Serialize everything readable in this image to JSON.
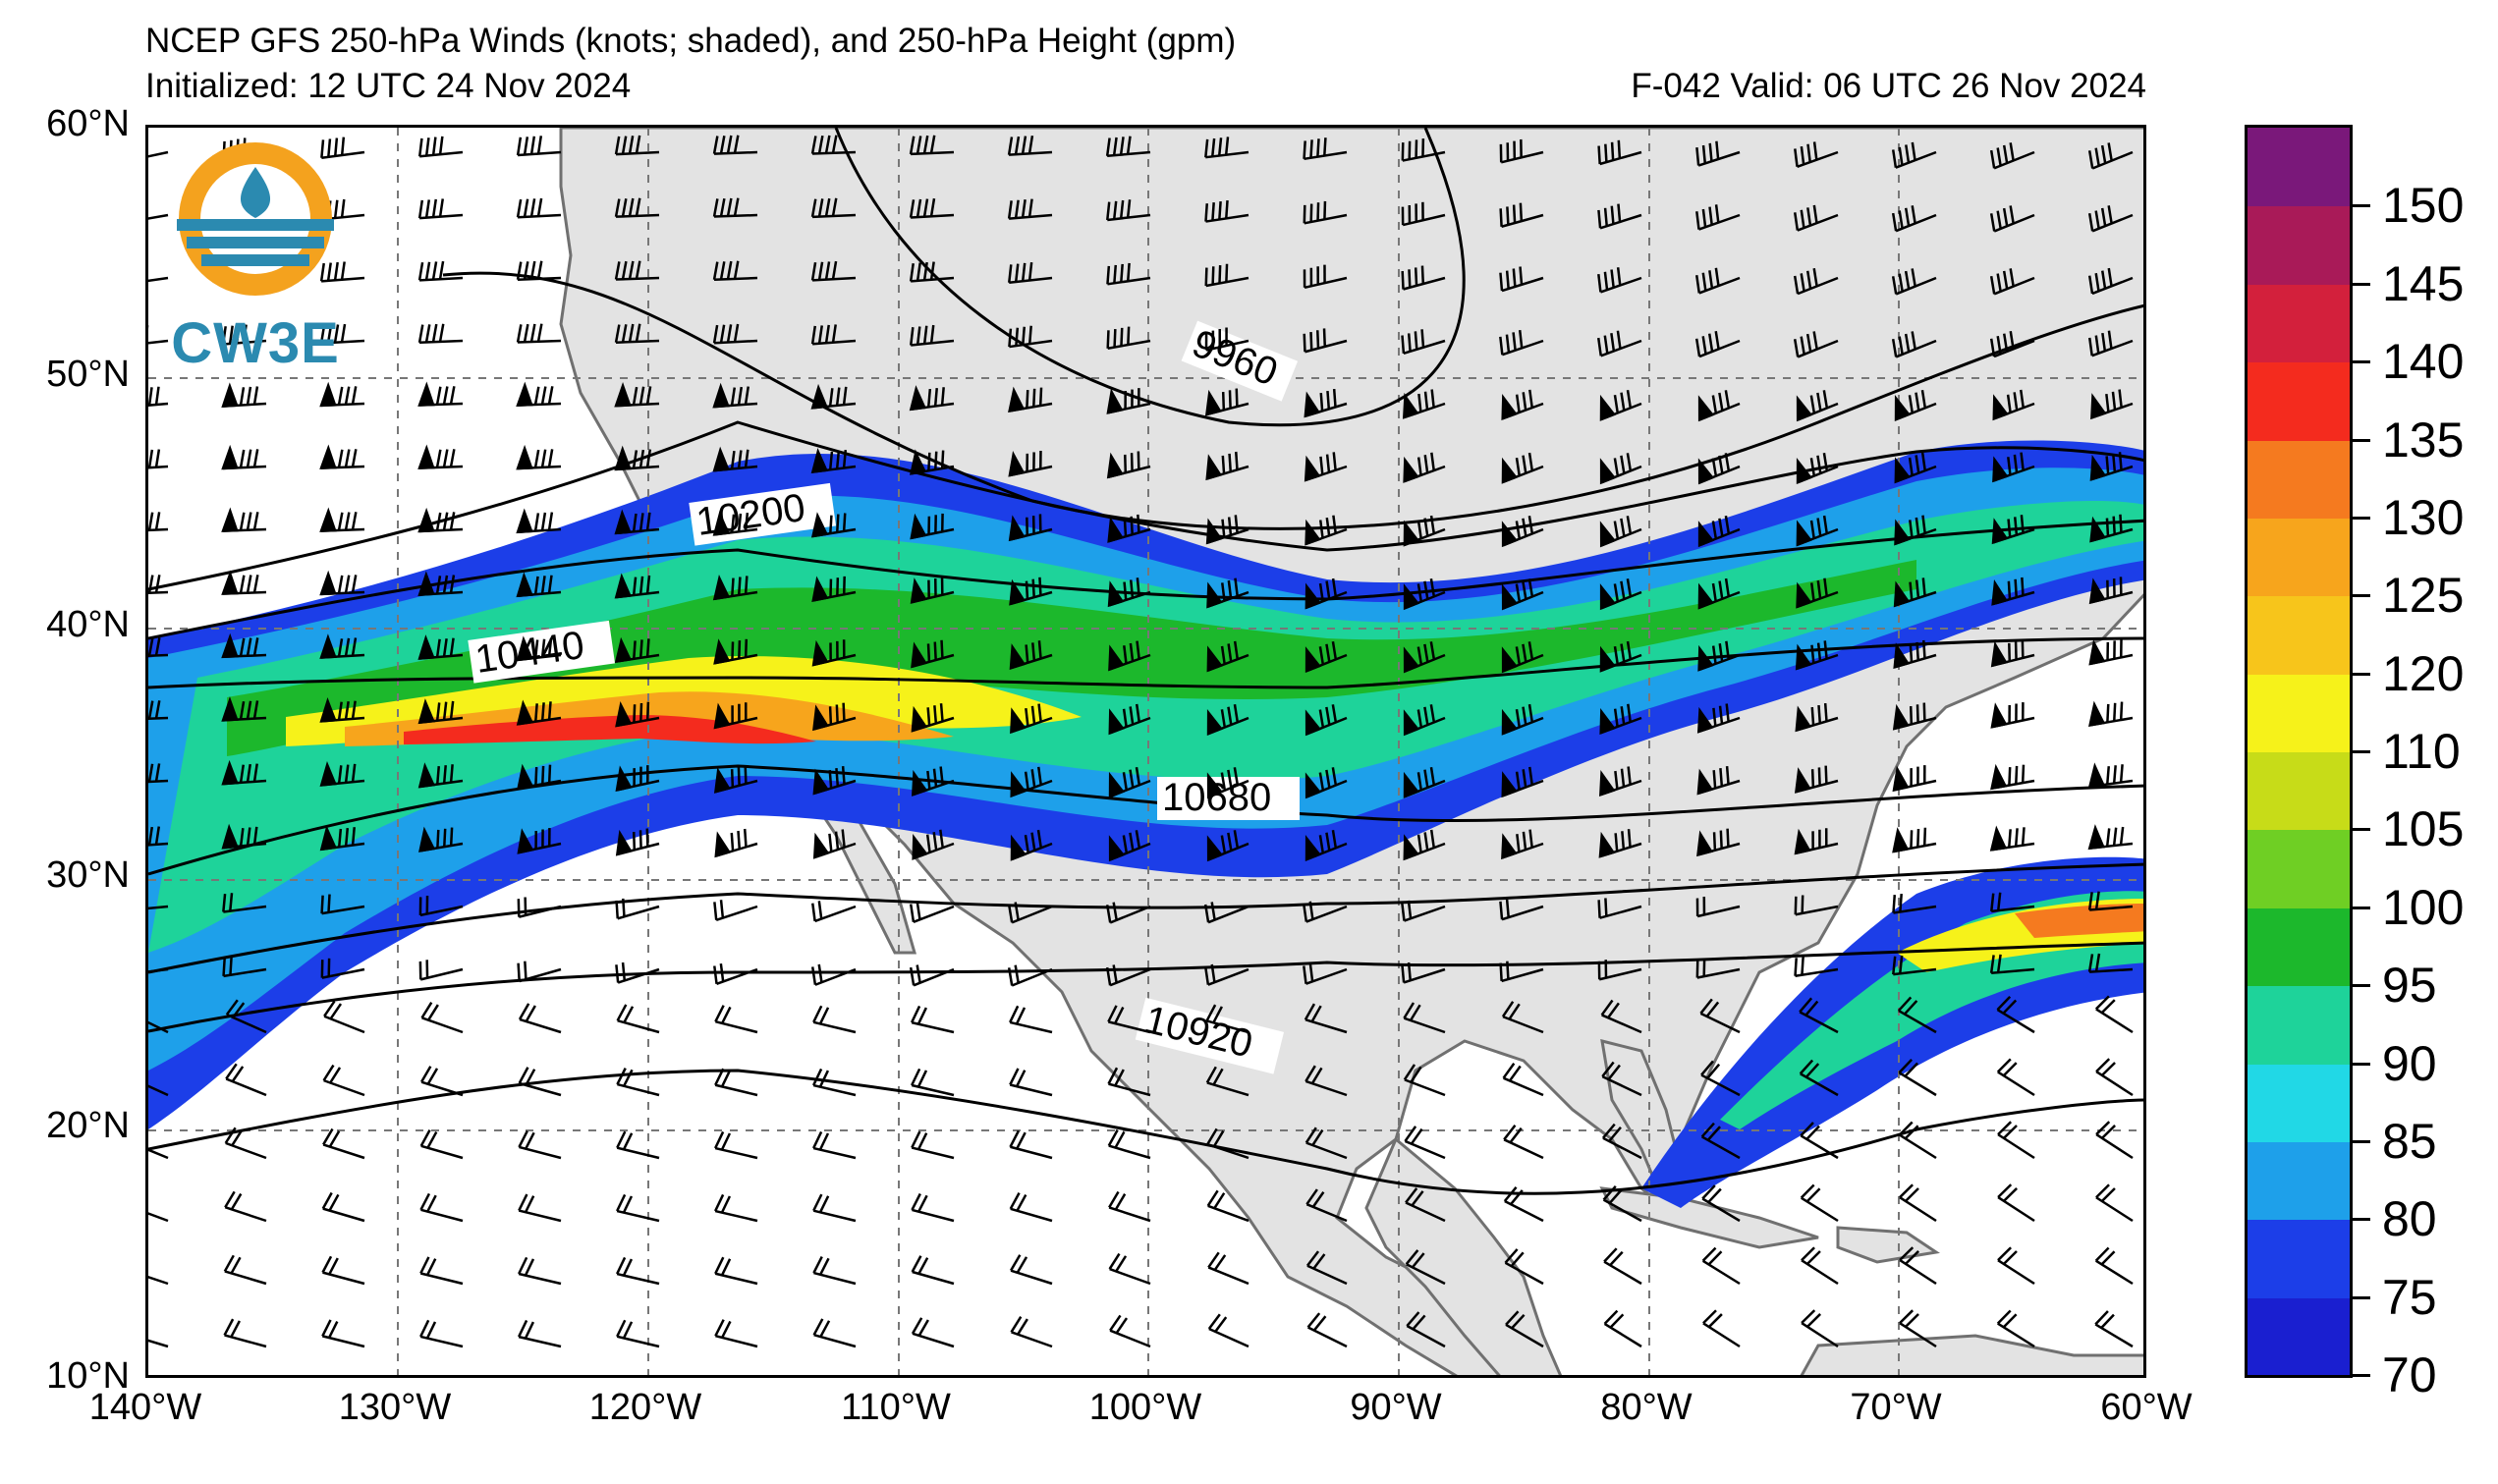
{
  "title": {
    "line1": "NCEP GFS 250-hPa Winds (knots; shaded), and 250-hPa Height (gpm)",
    "initialized": "Initialized: 12 UTC 24 Nov 2024",
    "valid": "F-042  Valid: 06 UTC 26 Nov 2024"
  },
  "logo": {
    "text": "CW3E",
    "icon": "water-drop-sun-icon"
  },
  "axes": {
    "lat_labels": [
      "60°N",
      "50°N",
      "40°N",
      "30°N",
      "20°N",
      "10°N"
    ],
    "lon_labels": [
      "140°W",
      "130°W",
      "120°W",
      "110°W",
      "100°W",
      "90°W",
      "80°W",
      "70°W",
      "60°W"
    ],
    "lat_range": [
      10,
      60
    ],
    "lon_range": [
      -140,
      -60
    ],
    "gridlines": "dashed"
  },
  "contours": {
    "labels": [
      "9960",
      "10200",
      "10440",
      "10680",
      "10920"
    ]
  },
  "colorbar": {
    "levels": [
      "70",
      "75",
      "80",
      "85",
      "90",
      "95",
      "100",
      "105",
      "110",
      "120",
      "125",
      "130",
      "135",
      "140",
      "145",
      "150"
    ],
    "tick_labels": [
      "70",
      "75",
      "80",
      "85",
      "90",
      "95",
      "100",
      "105",
      "110",
      "120",
      "125",
      "130",
      "135",
      "140",
      "145",
      "150"
    ],
    "colors": [
      "#1a1fd0",
      "#1c3ee8",
      "#1ea0ea",
      "#21d8e6",
      "#1ed39a",
      "#1cb82c",
      "#6fcf24",
      "#c7dc18",
      "#f6f21a",
      "#f7c51b",
      "#f7a51c",
      "#f57a1f",
      "#f42b1e",
      "#d3203c",
      "#a91a58",
      "#7a187a"
    ]
  },
  "map_colors": {
    "land": "#e3e3e3",
    "coast": "#707070",
    "ocean": "#ffffff"
  }
}
